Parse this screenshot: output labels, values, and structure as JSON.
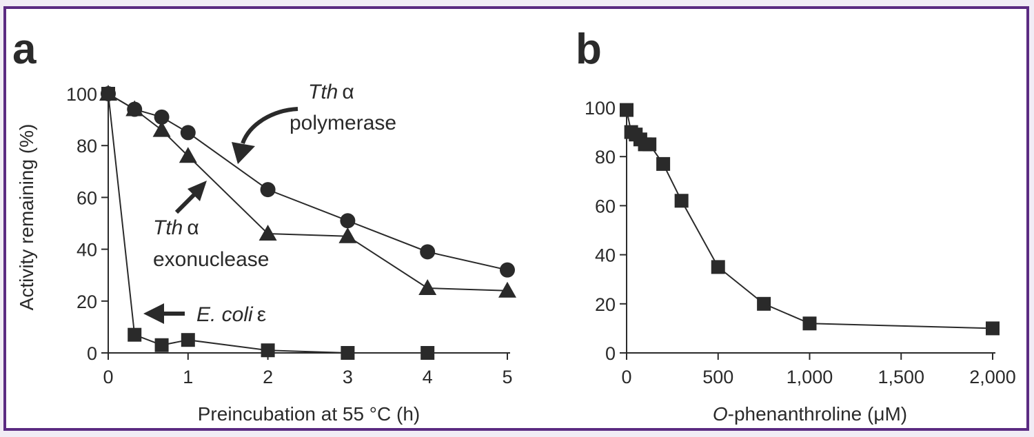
{
  "colors": {
    "frame": "#5b2b82",
    "panel_bg": "#ffffff",
    "page_bg": "#f1ecf5",
    "ink": "#2a2a2a"
  },
  "chart_data": [
    {
      "panel": "a",
      "type": "line",
      "xlabel": "Preincubation at 55 °C (h)",
      "ylabel": "Activity remaining (%)",
      "xlim": [
        0,
        5
      ],
      "ylim": [
        0,
        100
      ],
      "x_ticks": [
        "0",
        "1",
        "2",
        "3",
        "4",
        "5"
      ],
      "y_ticks": [
        "0",
        "20",
        "40",
        "60",
        "80",
        "100"
      ],
      "series": [
        {
          "name": "Tth α polymerase",
          "marker": "circle",
          "x": [
            0,
            0.33,
            0.67,
            1,
            2,
            3,
            4,
            5
          ],
          "y": [
            100,
            94,
            91,
            85,
            63,
            51,
            39,
            32
          ]
        },
        {
          "name": "Tth α exonuclease",
          "marker": "triangle",
          "x": [
            0,
            0.33,
            0.67,
            1,
            2,
            3,
            4,
            5
          ],
          "y": [
            100,
            94,
            86,
            76,
            46,
            45,
            25,
            24
          ]
        },
        {
          "name": "E. coli ε",
          "marker": "square",
          "x": [
            0,
            0.33,
            0.67,
            1,
            2,
            3,
            4
          ],
          "y": [
            100,
            7,
            3,
            5,
            1,
            0,
            0
          ]
        }
      ],
      "annotations": {
        "polymerase": {
          "italic": "Tth",
          "greek": "α",
          "line2": "polymerase"
        },
        "exonuclease": {
          "italic": "Tth",
          "greek": "α",
          "line2": "exonuclease"
        },
        "ecoli": {
          "italic": "E. coli",
          "greek": "ε"
        }
      }
    },
    {
      "panel": "b",
      "type": "line",
      "xlabel_italic": "O",
      "xlabel_rest": "-phenanthroline (μM)",
      "ylabel": "",
      "xlim": [
        0,
        2000
      ],
      "ylim": [
        0,
        100
      ],
      "x_ticks": [
        "0",
        "500",
        "1,000",
        "1,500",
        "2,000"
      ],
      "y_ticks": [
        "0",
        "20",
        "40",
        "60",
        "80",
        "100"
      ],
      "series": [
        {
          "marker": "square",
          "x": [
            0,
            25,
            50,
            75,
            100,
            125,
            200,
            300,
            500,
            750,
            1000,
            2000
          ],
          "y": [
            99,
            90,
            89,
            87,
            85,
            85,
            77,
            62,
            35,
            20,
            12,
            10
          ]
        }
      ]
    }
  ]
}
